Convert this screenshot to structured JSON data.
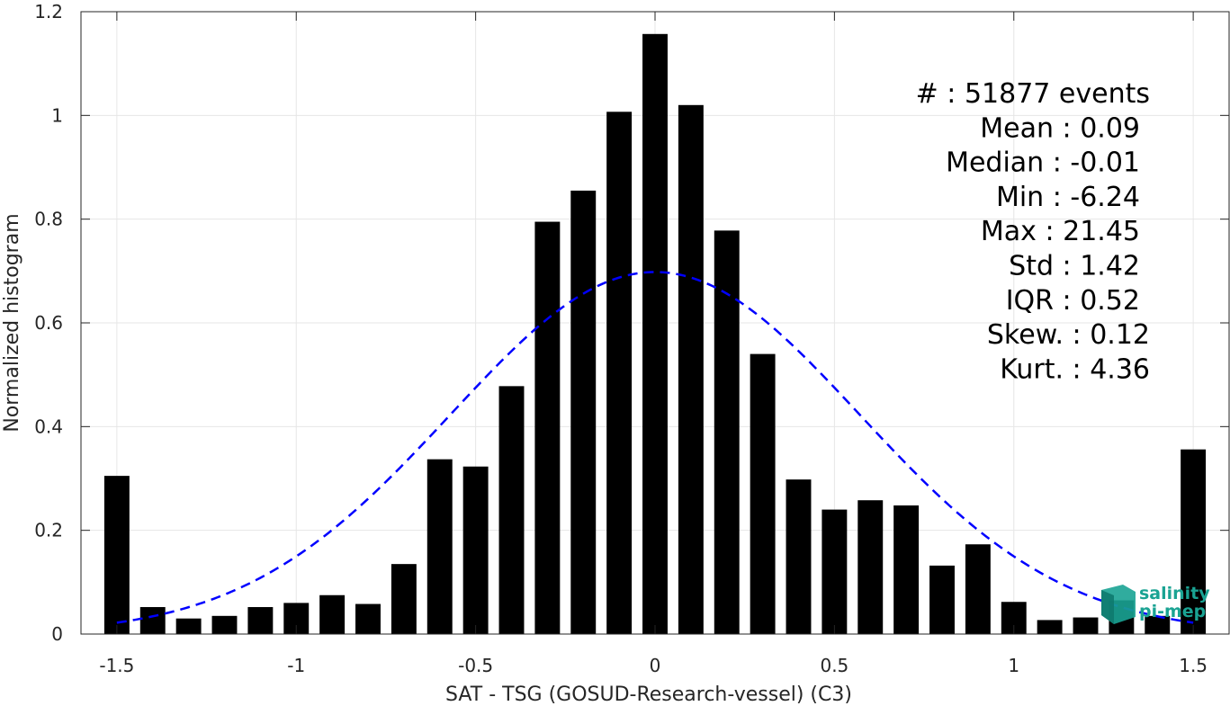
{
  "chart_data": {
    "type": "bar",
    "xlabel": "SAT - TSG (GOSUD-Research-vessel) (C3)",
    "ylabel": "Normalized histogram",
    "xlim": [
      -1.6,
      1.6
    ],
    "ylim": [
      0,
      1.2
    ],
    "x_ticks": [
      -1.5,
      -1,
      -0.5,
      0,
      0.5,
      1,
      1.5
    ],
    "x_tick_labels": [
      "-1.5",
      "-1",
      "-0.5",
      "0",
      "0.5",
      "1",
      "1.5"
    ],
    "y_ticks": [
      0,
      0.2,
      0.4,
      0.6,
      0.8,
      1,
      1.2
    ],
    "y_tick_labels": [
      "0",
      "0.2",
      "0.4",
      "0.6",
      "0.8",
      "1",
      "1.2"
    ],
    "grid": true,
    "bar_width": 0.07,
    "bar_color": "#000000",
    "bins": [
      {
        "x": -1.5,
        "y": 0.305
      },
      {
        "x": -1.4,
        "y": 0.052
      },
      {
        "x": -1.3,
        "y": 0.03
      },
      {
        "x": -1.2,
        "y": 0.035
      },
      {
        "x": -1.1,
        "y": 0.052
      },
      {
        "x": -1.0,
        "y": 0.06
      },
      {
        "x": -0.9,
        "y": 0.075
      },
      {
        "x": -0.8,
        "y": 0.058
      },
      {
        "x": -0.7,
        "y": 0.135
      },
      {
        "x": -0.6,
        "y": 0.337
      },
      {
        "x": -0.5,
        "y": 0.323
      },
      {
        "x": -0.4,
        "y": 0.478
      },
      {
        "x": -0.3,
        "y": 0.795
      },
      {
        "x": -0.2,
        "y": 0.855
      },
      {
        "x": -0.1,
        "y": 1.007
      },
      {
        "x": 0.0,
        "y": 1.157
      },
      {
        "x": 0.1,
        "y": 1.02
      },
      {
        "x": 0.2,
        "y": 0.778
      },
      {
        "x": 0.3,
        "y": 0.54
      },
      {
        "x": 0.4,
        "y": 0.298
      },
      {
        "x": 0.5,
        "y": 0.24
      },
      {
        "x": 0.6,
        "y": 0.258
      },
      {
        "x": 0.7,
        "y": 0.248
      },
      {
        "x": 0.8,
        "y": 0.132
      },
      {
        "x": 0.9,
        "y": 0.173
      },
      {
        "x": 1.0,
        "y": 0.062
      },
      {
        "x": 1.1,
        "y": 0.027
      },
      {
        "x": 1.2,
        "y": 0.032
      },
      {
        "x": 1.3,
        "y": 0.065
      },
      {
        "x": 1.4,
        "y": 0.035
      },
      {
        "x": 1.5,
        "y": 0.356
      }
    ],
    "fit_curve": {
      "type": "gaussian",
      "mean": 0.0,
      "std": 0.57,
      "peak": 0.698,
      "x_range": [
        -1.5,
        1.5
      ],
      "color": "#0000ff",
      "style": "dashed"
    },
    "stats_lines": [
      "#  : 51877 events",
      "Mean : 0.09",
      "Median : -0.01",
      "Min : -6.24",
      "Max : 21.45",
      "Std : 1.42",
      "IQR : 0.52",
      "Skew. : 0.12",
      "Kurt. : 4.36"
    ]
  },
  "logo": {
    "line1": "salinity",
    "line2": "pi-mep",
    "color": "#1aa393"
  }
}
